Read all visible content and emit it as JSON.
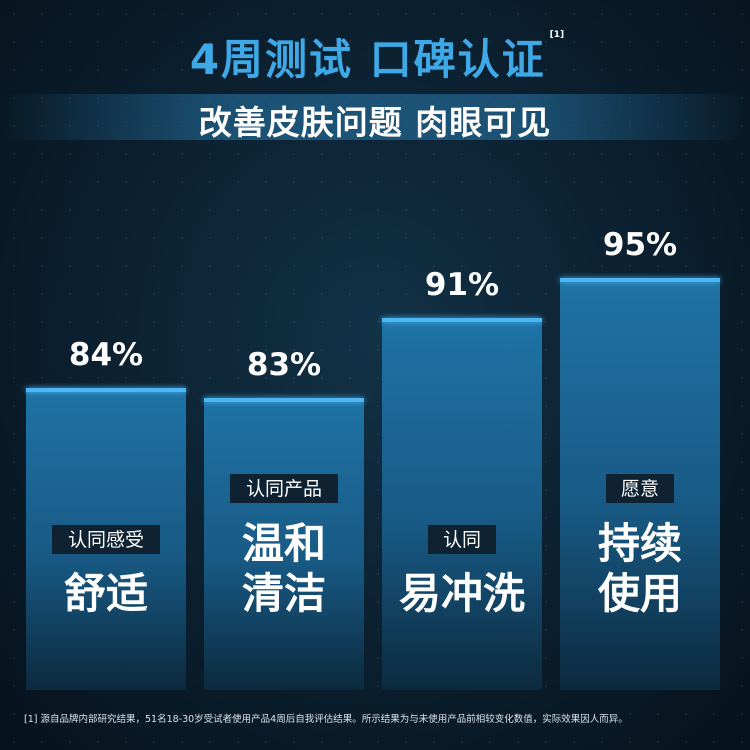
{
  "header": {
    "title": "4周测试 口碑认证",
    "title_ref": "[1]",
    "subtitle": "改善皮肤问题 肉眼可见"
  },
  "colors": {
    "accent": "#3fa9e8",
    "bar_top": "#1d6b9b",
    "bar_bottom": "#0d2a3f",
    "bar_edge": "#4cb8f5",
    "tag_bg": "#0e2232"
  },
  "chart_data": {
    "type": "bar",
    "categories": [
      "舒适",
      "温和清洁",
      "易冲洗",
      "持续使用"
    ],
    "values": [
      84,
      83,
      91,
      95
    ],
    "value_labels": [
      "84%",
      "83%",
      "91%",
      "95%"
    ],
    "tags": [
      "认同感受",
      "认同产品",
      "认同",
      "愿意"
    ],
    "claim_lines": [
      [
        "舒适"
      ],
      [
        "温和",
        "清洁"
      ],
      [
        "易冲洗"
      ],
      [
        "持续",
        "使用"
      ]
    ],
    "ylim": [
      0,
      100
    ],
    "grid": false,
    "legend": "none"
  },
  "footnote": "[1] 源自品牌内部研究结果，51名18-30岁受试者使用产品4周后自我评估结果。所示结果为与未使用产品前相较变化数值，实际效果因人而异。"
}
